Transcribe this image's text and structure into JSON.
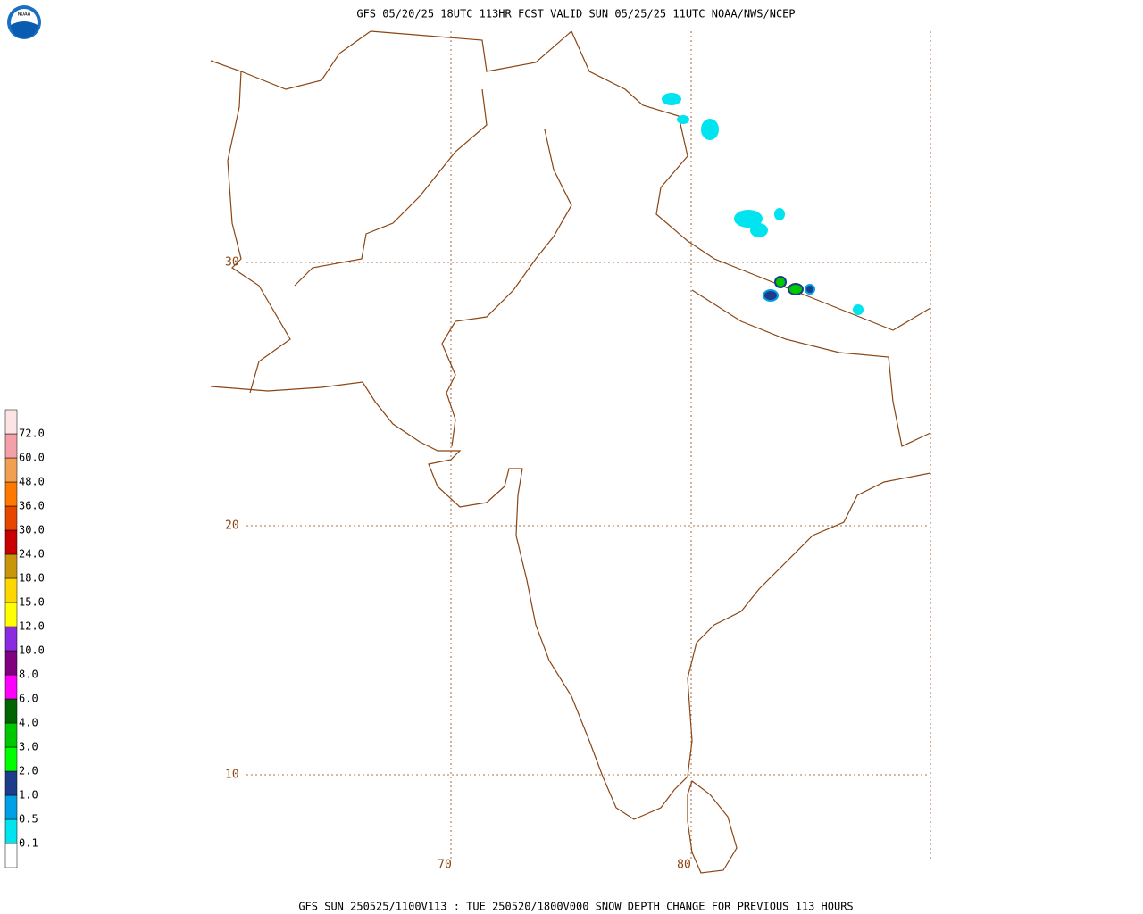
{
  "header": {
    "title": "GFS 05/20/25 18UTC 113HR FCST VALID SUN 05/25/25 11UTC NOAA/NWS/NCEP"
  },
  "footer": {
    "text": "GFS SUN 250525/1100V113 : TUE 250520/1800V000 SNOW DEPTH CHANGE FOR PREVIOUS 113 HOURS"
  },
  "logo": {
    "text": "NOAA"
  },
  "map": {
    "lat_labels": [
      "30",
      "20",
      "10"
    ],
    "lon_labels": [
      "70",
      "80"
    ]
  },
  "colorbar": {
    "labels": [
      "0.1",
      "0.5",
      "1.0",
      "2.0",
      "3.0",
      "4.0",
      "6.0",
      "8.0",
      "10.0",
      "12.0",
      "15.0",
      "18.0",
      "24.0",
      "30.0",
      "36.0",
      "48.0",
      "60.0",
      "72.0"
    ],
    "colors": [
      "#ffffff",
      "#00e4f0",
      "#00a0e6",
      "#1e3c8c",
      "#00ff00",
      "#00c800",
      "#006400",
      "#ff00ff",
      "#80007f",
      "#8a2be2",
      "#ffff00",
      "#ffd700",
      "#c8960a",
      "#c80000",
      "#e64600",
      "#ff7800",
      "#f0a050",
      "#f4a0a8",
      "#fde4e4"
    ]
  }
}
